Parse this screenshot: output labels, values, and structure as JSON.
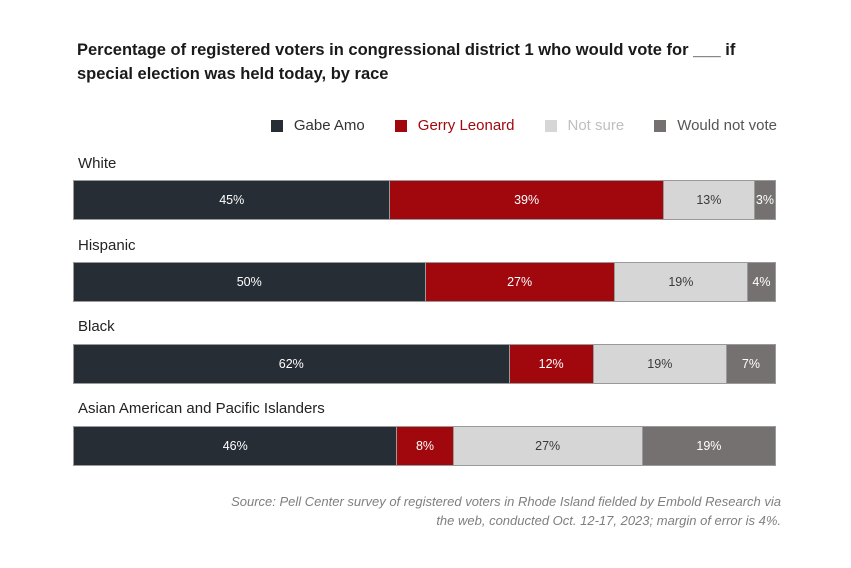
{
  "chart_data": {
    "type": "bar",
    "orientation": "horizontal",
    "stacked": true,
    "title": "Percentage of registered voters in congressional district 1 who would vote for ___ if special election was held today, by race",
    "categories": [
      "White",
      "Hispanic",
      "Black",
      "Asian American and Pacific Islanders"
    ],
    "series": [
      {
        "name": "Gabe Amo",
        "color": "#262d35",
        "text_color": "#ffffff",
        "values": [
          45,
          50,
          62,
          46
        ],
        "labels": [
          "45%",
          "50%",
          "62%",
          "46%"
        ]
      },
      {
        "name": "Gerry Leonard",
        "color": "#a0080e",
        "text_color": "#ffffff",
        "values": [
          39,
          27,
          12,
          8
        ],
        "labels": [
          "39%",
          "27%",
          "12%",
          "8%"
        ]
      },
      {
        "name": "Not sure",
        "color": "#d6d6d6",
        "text_color": "#3a3a3a",
        "values": [
          13,
          19,
          19,
          27
        ],
        "labels": [
          "13%",
          "19%",
          "19%",
          "27%"
        ]
      },
      {
        "name": "Would not vote",
        "color": "#767171",
        "text_color": "#ffffff",
        "values": [
          3,
          4,
          7,
          19
        ],
        "labels": [
          "3%",
          "4%",
          "7%",
          "19%"
        ]
      }
    ],
    "legend_text_colors": [
      "#333333",
      "#a0080e",
      "#bfbfbf",
      "#555555"
    ],
    "source": "Source: Pell Center survey of registered voters in Rhode Island fielded by Embold Research via the web, conducted Oct. 12-17, 2023; margin of error is 4%.",
    "xlim": [
      0,
      100
    ],
    "legend_position": "top-right"
  }
}
